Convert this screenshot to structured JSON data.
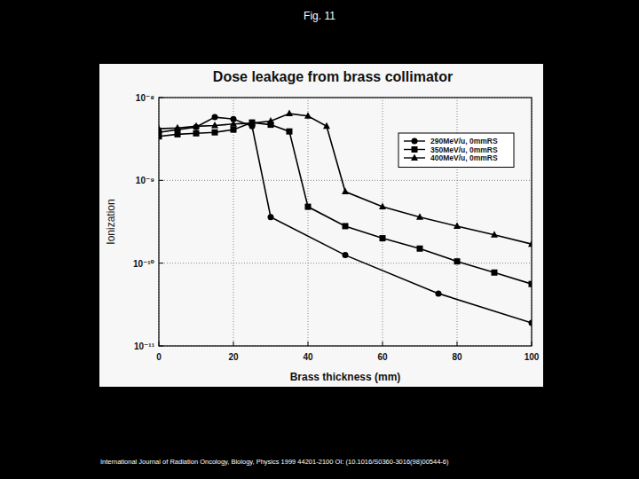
{
  "page": {
    "heading": "Fig. 11",
    "caption": "International Journal of Radiation Oncology, Biology, Physics 1999 44201-2100 OI: (10.1016/S0360-3016(98)00544-6)"
  },
  "chart_data": {
    "type": "line",
    "title": "Dose leakage from brass collimator",
    "x_label": "Brass thickness (mm)",
    "y_label": "Ionization",
    "log": "y",
    "grid": true,
    "legend": "upper right",
    "xlim": [
      0,
      100
    ],
    "xticks": [
      0,
      20,
      40,
      60,
      80,
      100
    ],
    "ylim": [
      1e-11,
      1e-08
    ],
    "yticks": [
      {
        "value": 1e-11,
        "label": "10⁻¹¹"
      },
      {
        "value": 1e-10,
        "label": "10⁻¹⁰"
      },
      {
        "value": 1e-09,
        "label": "10⁻⁹"
      },
      {
        "value": 1e-08,
        "label": "10⁻⁸"
      }
    ],
    "series": [
      {
        "name": "290MeV/u, 0mmRS",
        "color": "#000000",
        "marker": "circle",
        "line_style": "solid",
        "x": [
          0,
          5,
          10,
          15,
          20,
          25,
          30,
          50,
          75,
          100
        ],
        "values": [
          3.8e-09,
          4.1e-09,
          4.4e-09,
          5.8e-09,
          5.5e-09,
          4.5e-09,
          3.6e-10,
          1.25e-10,
          4.3e-11,
          1.9e-11
        ]
      },
      {
        "name": "350MeV/u, 0mmRS",
        "color": "#000000",
        "marker": "square",
        "line_style": "solid",
        "x": [
          0,
          5,
          10,
          15,
          20,
          25,
          30,
          35,
          40,
          50,
          60,
          70,
          80,
          90,
          100
        ],
        "values": [
          3.4e-09,
          3.6e-09,
          3.7e-09,
          3.8e-09,
          4.1e-09,
          5e-09,
          4.7e-09,
          3.9e-09,
          4.8e-10,
          2.8e-10,
          2e-10,
          1.5e-10,
          1.05e-10,
          7.7e-11,
          5.6e-11
        ]
      },
      {
        "name": "400MeV/u, 0mmRS",
        "color": "#000000",
        "marker": "triangle",
        "line_style": "solid",
        "x": [
          0,
          5,
          10,
          15,
          20,
          25,
          30,
          35,
          40,
          45,
          50,
          60,
          70,
          80,
          90,
          100
        ],
        "values": [
          4.2e-09,
          4.3e-09,
          4.5e-09,
          4.6e-09,
          4.8e-09,
          4.9e-09,
          5.2e-09,
          6.4e-09,
          6e-09,
          4.5e-09,
          7.3e-10,
          4.8e-10,
          3.6e-10,
          2.8e-10,
          2.2e-10,
          1.7e-10
        ]
      }
    ]
  }
}
